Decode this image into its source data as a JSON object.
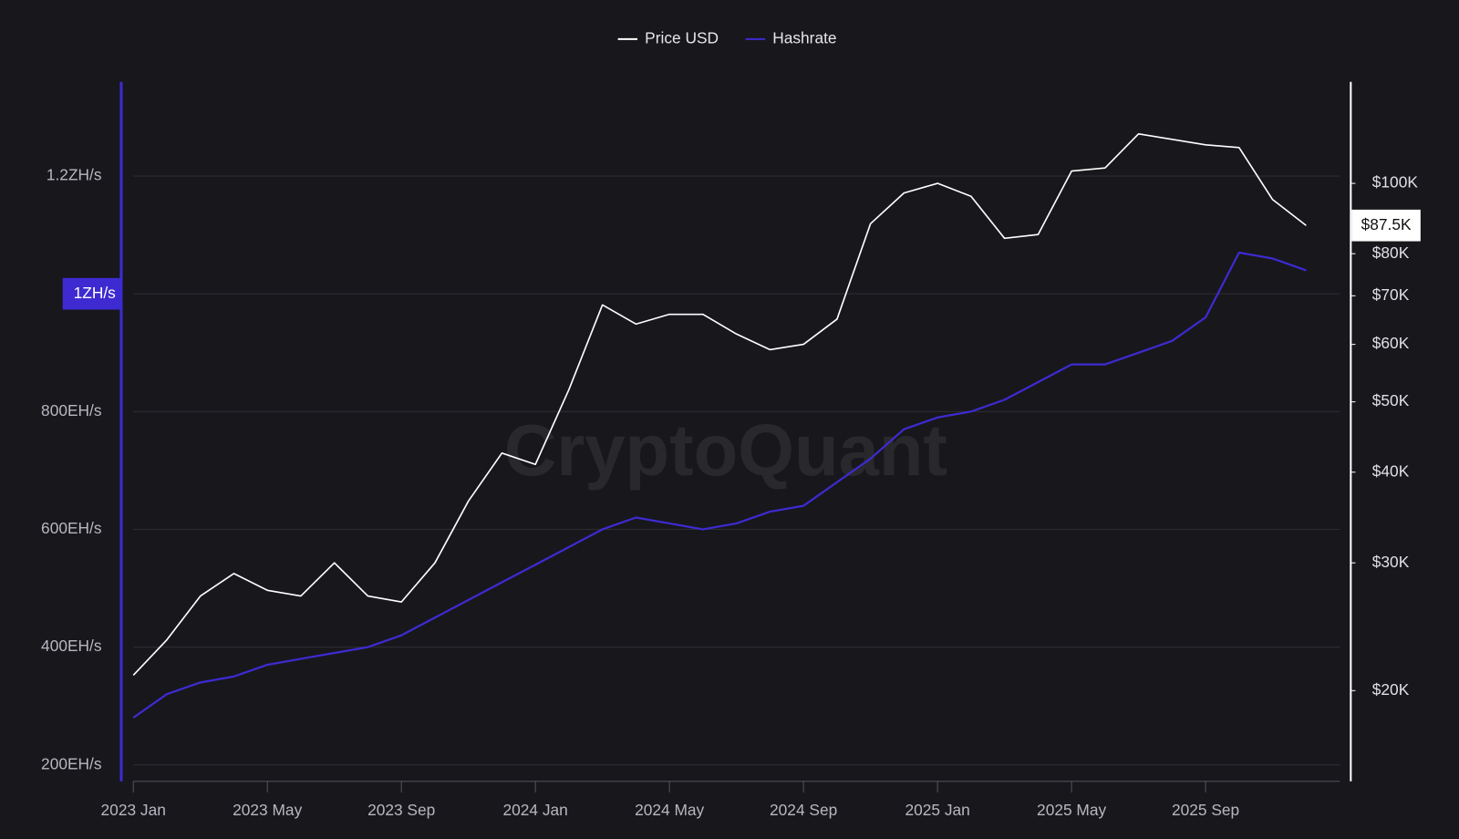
{
  "chart_data": {
    "type": "line",
    "watermark": "CryptoQuant",
    "x": [
      "2023-01",
      "2023-02",
      "2023-03",
      "2023-04",
      "2023-05",
      "2023-06",
      "2023-07",
      "2023-08",
      "2023-09",
      "2023-10",
      "2023-11",
      "2023-12",
      "2024-01",
      "2024-02",
      "2024-03",
      "2024-04",
      "2024-05",
      "2024-06",
      "2024-07",
      "2024-08",
      "2024-09",
      "2024-10",
      "2024-11",
      "2024-12",
      "2025-01",
      "2025-02",
      "2025-03",
      "2025-04",
      "2025-05",
      "2025-06",
      "2025-07",
      "2025-08",
      "2025-09",
      "2025-10",
      "2025-11",
      "2025-12"
    ],
    "xlim": [
      "2023-01",
      "2026-01"
    ],
    "xticks": [
      {
        "value": "2023-01",
        "label": "2023 Jan"
      },
      {
        "value": "2023-05",
        "label": "2023 May"
      },
      {
        "value": "2023-09",
        "label": "2023 Sep"
      },
      {
        "value": "2024-01",
        "label": "2024 Jan"
      },
      {
        "value": "2024-05",
        "label": "2024 May"
      },
      {
        "value": "2024-09",
        "label": "2024 Sep"
      },
      {
        "value": "2025-01",
        "label": "2025 Jan"
      },
      {
        "value": "2025-05",
        "label": "2025 May"
      },
      {
        "value": "2025-09",
        "label": "2025 Sep"
      }
    ],
    "ylim": [
      172,
      1360
    ],
    "yticks": [
      {
        "value": 200,
        "label": "200EH/s"
      },
      {
        "value": 400,
        "label": "400EH/s"
      },
      {
        "value": 600,
        "label": "600EH/s"
      },
      {
        "value": 800,
        "label": "800EH/s"
      },
      {
        "value": 1000,
        "label": "1ZH/s"
      },
      {
        "value": 1200,
        "label": "1.2ZH/s"
      }
    ],
    "y2lim": [
      15000,
      138000
    ],
    "y2_log": true,
    "y2ticks": [
      {
        "value": 20000,
        "label": "$20K"
      },
      {
        "value": 30000,
        "label": "$30K"
      },
      {
        "value": 40000,
        "label": "$40K"
      },
      {
        "value": 50000,
        "label": "$50K"
      },
      {
        "value": 60000,
        "label": "$60K"
      },
      {
        "value": 70000,
        "label": "$70K"
      },
      {
        "value": 80000,
        "label": "$80K"
      },
      {
        "value": 100000,
        "label": "$100K"
      }
    ],
    "highlight_ytick": 4,
    "grid": true,
    "series": [
      {
        "name": "Price USD",
        "color": "#ffffff",
        "axis": "y2",
        "values": [
          21000,
          23500,
          27000,
          29000,
          27500,
          27000,
          30000,
          27000,
          26500,
          30000,
          36500,
          42500,
          41000,
          52000,
          68000,
          64000,
          66000,
          66000,
          62000,
          59000,
          60000,
          65000,
          88000,
          97000,
          100000,
          96000,
          84000,
          85000,
          104000,
          105000,
          117000,
          115000,
          113000,
          112000,
          95000,
          87500
        ],
        "last_value_label": "$87.5K"
      },
      {
        "name": "Hashrate",
        "color": "#3d2bd1",
        "axis": "y",
        "values": [
          280,
          320,
          340,
          350,
          370,
          380,
          390,
          400,
          420,
          450,
          480,
          510,
          540,
          570,
          600,
          620,
          610,
          600,
          610,
          630,
          640,
          680,
          720,
          770,
          790,
          800,
          820,
          850,
          880,
          880,
          900,
          920,
          960,
          1070,
          1060,
          1040
        ]
      }
    ]
  }
}
